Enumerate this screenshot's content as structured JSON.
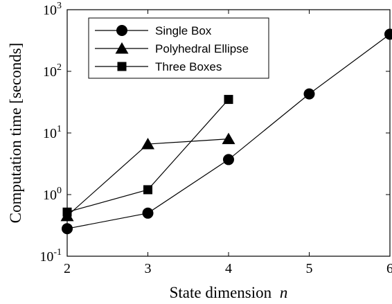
{
  "chart_data": {
    "type": "line",
    "title": "",
    "xlabel": "State dimension",
    "xlabel_var": "n",
    "ylabel": "Computation time [seconds]",
    "y_scale": "log",
    "xlim": [
      2,
      6
    ],
    "ylim": [
      0.1,
      1000
    ],
    "x_ticks": [
      2,
      3,
      4,
      5,
      6
    ],
    "y_ticks": [
      {
        "value": 0.1,
        "base": "10",
        "exp": "-1"
      },
      {
        "value": 1,
        "base": "10",
        "exp": "0"
      },
      {
        "value": 10,
        "base": "10",
        "exp": "1"
      },
      {
        "value": 100,
        "base": "10",
        "exp": "2"
      },
      {
        "value": 1000,
        "base": "10",
        "exp": "3"
      }
    ],
    "grid": false,
    "legend_position": "top-left",
    "series": [
      {
        "name": "Single Box",
        "marker": "circle",
        "x": [
          2,
          3,
          4,
          5,
          6
        ],
        "y": [
          0.28,
          0.5,
          3.7,
          43,
          400
        ]
      },
      {
        "name": "Polyhedral Ellipse",
        "marker": "triangle",
        "x": [
          2,
          3,
          4
        ],
        "y": [
          0.45,
          6.6,
          8.0
        ]
      },
      {
        "name": "Three Boxes",
        "marker": "square",
        "x": [
          2,
          3,
          4
        ],
        "y": [
          0.52,
          1.2,
          35
        ]
      }
    ]
  }
}
